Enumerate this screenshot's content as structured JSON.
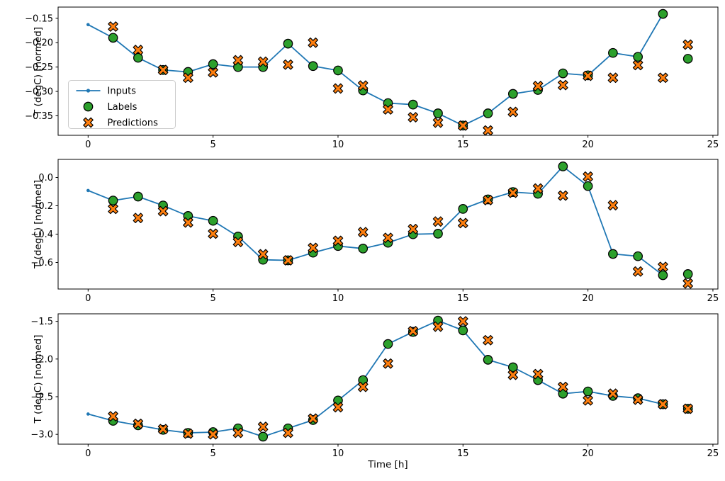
{
  "figure": {
    "xlabel": "Time [h]",
    "ylabel": "T (degC) [normed]",
    "background": "#ffffff",
    "colors": {
      "inputs": "#1f77b4",
      "labels": "#2ca02c",
      "predictions": "#ff7f0e",
      "marker_edge": "#000000",
      "spine": "#000000",
      "legend_border": "#cccccc",
      "legend_fill": "#ffffff"
    },
    "legend": {
      "position": "center-left-of-top-panel",
      "entries": [
        {
          "label": "Inputs",
          "style": "line-with-dots"
        },
        {
          "label": "Labels",
          "style": "scatter-circle"
        },
        {
          "label": "Predictions",
          "style": "scatter-x"
        }
      ]
    }
  },
  "chart_data": [
    {
      "type": "line",
      "panel": "top",
      "title": "",
      "xlabel": "",
      "ylabel": "T (degC) [normed]",
      "grid": false,
      "show_legend": true,
      "xlim": [
        -1.2,
        25.2
      ],
      "ylim": [
        -0.39,
        -0.127
      ],
      "xtick_values": [
        0,
        5,
        10,
        15,
        20,
        25
      ],
      "xtick_labels": [
        "0",
        "5",
        "10",
        "15",
        "20",
        "25"
      ],
      "ytick_values": [
        -0.15,
        -0.2,
        -0.25,
        -0.3,
        -0.35
      ],
      "ytick_labels": [
        "−0.15",
        "−0.20",
        "−0.25",
        "−0.30",
        "−0.35"
      ],
      "series": [
        {
          "name": "Inputs",
          "style": "line-with-dots",
          "x": [
            0,
            1,
            2,
            3,
            4,
            5,
            6,
            7,
            8,
            9,
            10,
            11,
            12,
            13,
            14,
            15,
            16,
            17,
            18,
            19,
            20,
            21,
            22,
            23
          ],
          "y": [
            -0.163,
            -0.19,
            -0.231,
            -0.256,
            -0.26,
            -0.244,
            -0.25,
            -0.25,
            -0.202,
            -0.248,
            -0.257,
            -0.298,
            -0.324,
            -0.327,
            -0.345,
            -0.37,
            -0.345,
            -0.305,
            -0.297,
            -0.263,
            -0.267,
            -0.221,
            -0.229,
            -0.141
          ]
        },
        {
          "name": "Labels",
          "style": "scatter-circle",
          "x": [
            1,
            2,
            3,
            4,
            5,
            6,
            7,
            8,
            9,
            10,
            11,
            12,
            13,
            14,
            15,
            16,
            17,
            18,
            19,
            20,
            21,
            22,
            23,
            24
          ],
          "y": [
            -0.19,
            -0.231,
            -0.256,
            -0.26,
            -0.244,
            -0.25,
            -0.25,
            -0.202,
            -0.248,
            -0.257,
            -0.298,
            -0.324,
            -0.327,
            -0.345,
            -0.37,
            -0.345,
            -0.305,
            -0.297,
            -0.263,
            -0.267,
            -0.221,
            -0.229,
            -0.141,
            -0.233
          ]
        },
        {
          "name": "Predictions",
          "style": "scatter-x",
          "x": [
            1,
            2,
            3,
            4,
            5,
            6,
            7,
            8,
            9,
            10,
            11,
            12,
            13,
            14,
            15,
            16,
            17,
            18,
            19,
            20,
            21,
            22,
            23,
            24
          ],
          "y": [
            -0.167,
            -0.215,
            -0.256,
            -0.272,
            -0.261,
            -0.236,
            -0.239,
            -0.245,
            -0.2,
            -0.294,
            -0.288,
            -0.337,
            -0.353,
            -0.364,
            -0.37,
            -0.38,
            -0.342,
            -0.289,
            -0.287,
            -0.268,
            -0.272,
            -0.246,
            -0.272,
            -0.204
          ]
        }
      ]
    },
    {
      "type": "line",
      "panel": "middle",
      "title": "",
      "xlabel": "",
      "ylabel": "T (degC) [normed]",
      "grid": false,
      "show_legend": false,
      "xlim": [
        -1.2,
        25.2
      ],
      "ylim": [
        -0.7875,
        0.1275
      ],
      "xtick_values": [
        0,
        5,
        10,
        15,
        20,
        25
      ],
      "xtick_labels": [
        "0",
        "5",
        "10",
        "15",
        "20",
        "25"
      ],
      "ytick_values": [
        0.0,
        -0.2,
        -0.4,
        -0.6
      ],
      "ytick_labels": [
        "0.0",
        "−0.2",
        "−0.4",
        "−0.6"
      ],
      "series": [
        {
          "name": "Inputs",
          "style": "line-with-dots",
          "x": [
            0,
            1,
            2,
            3,
            4,
            5,
            6,
            7,
            8,
            9,
            10,
            11,
            12,
            13,
            14,
            15,
            16,
            17,
            18,
            19,
            20,
            21,
            22,
            23
          ],
          "y": [
            -0.092,
            -0.163,
            -0.135,
            -0.198,
            -0.272,
            -0.306,
            -0.417,
            -0.581,
            -0.585,
            -0.531,
            -0.484,
            -0.502,
            -0.461,
            -0.401,
            -0.397,
            -0.222,
            -0.155,
            -0.103,
            -0.115,
            0.078,
            -0.061,
            -0.54,
            -0.556,
            -0.69
          ]
        },
        {
          "name": "Labels",
          "style": "scatter-circle",
          "x": [
            1,
            2,
            3,
            4,
            5,
            6,
            7,
            8,
            9,
            10,
            11,
            12,
            13,
            14,
            15,
            16,
            17,
            18,
            19,
            20,
            21,
            22,
            23,
            24
          ],
          "y": [
            -0.163,
            -0.135,
            -0.198,
            -0.272,
            -0.306,
            -0.417,
            -0.581,
            -0.585,
            -0.531,
            -0.484,
            -0.502,
            -0.461,
            -0.401,
            -0.397,
            -0.222,
            -0.155,
            -0.103,
            -0.115,
            0.078,
            -0.061,
            -0.54,
            -0.556,
            -0.69,
            -0.682
          ]
        },
        {
          "name": "Predictions",
          "style": "scatter-x",
          "x": [
            1,
            2,
            3,
            4,
            5,
            6,
            7,
            8,
            9,
            10,
            11,
            12,
            13,
            14,
            15,
            16,
            17,
            18,
            19,
            20,
            21,
            22,
            23,
            24
          ],
          "y": [
            -0.222,
            -0.286,
            -0.238,
            -0.318,
            -0.397,
            -0.455,
            -0.542,
            -0.585,
            -0.497,
            -0.447,
            -0.386,
            -0.426,
            -0.364,
            -0.311,
            -0.322,
            -0.16,
            -0.108,
            -0.078,
            -0.128,
            0.006,
            -0.196,
            -0.664,
            -0.631,
            -0.748
          ]
        }
      ]
    },
    {
      "type": "line",
      "panel": "bottom",
      "title": "",
      "xlabel": "Time [h]",
      "ylabel": "T (degC) [normed]",
      "grid": false,
      "show_legend": false,
      "xlim": [
        -1.2,
        25.2
      ],
      "ylim": [
        -3.13,
        -1.4
      ],
      "xtick_values": [
        0,
        5,
        10,
        15,
        20,
        25
      ],
      "xtick_labels": [
        "0",
        "5",
        "10",
        "15",
        "20",
        "25"
      ],
      "ytick_values": [
        -1.5,
        -2.0,
        -2.5,
        -3.0
      ],
      "ytick_labels": [
        "−1.5",
        "−2.0",
        "−2.5",
        "−3.0"
      ],
      "series": [
        {
          "name": "Inputs",
          "style": "line-with-dots",
          "x": [
            0,
            1,
            2,
            3,
            4,
            5,
            6,
            7,
            8,
            9,
            10,
            11,
            12,
            13,
            14,
            15,
            16,
            17,
            18,
            19,
            20,
            21,
            22,
            23
          ],
          "y": [
            -2.73,
            -2.82,
            -2.88,
            -2.94,
            -2.98,
            -2.97,
            -2.92,
            -3.03,
            -2.92,
            -2.81,
            -2.55,
            -2.28,
            -1.8,
            -1.64,
            -1.49,
            -1.62,
            -2.01,
            -2.11,
            -2.28,
            -2.46,
            -2.43,
            -2.49,
            -2.52,
            -2.6
          ]
        },
        {
          "name": "Labels",
          "style": "scatter-circle",
          "x": [
            1,
            2,
            3,
            4,
            5,
            6,
            7,
            8,
            9,
            10,
            11,
            12,
            13,
            14,
            15,
            16,
            17,
            18,
            19,
            20,
            21,
            22,
            23,
            24
          ],
          "y": [
            -2.82,
            -2.88,
            -2.94,
            -2.98,
            -2.97,
            -2.92,
            -3.03,
            -2.92,
            -2.81,
            -2.55,
            -2.28,
            -1.8,
            -1.64,
            -1.49,
            -1.62,
            -2.01,
            -2.11,
            -2.28,
            -2.46,
            -2.43,
            -2.49,
            -2.52,
            -2.6,
            -2.66
          ]
        },
        {
          "name": "Predictions",
          "style": "scatter-x",
          "x": [
            1,
            2,
            3,
            4,
            5,
            6,
            7,
            8,
            9,
            10,
            11,
            12,
            13,
            14,
            15,
            16,
            17,
            18,
            19,
            20,
            21,
            22,
            23,
            24
          ],
          "y": [
            -2.76,
            -2.86,
            -2.93,
            -2.99,
            -3.0,
            -2.98,
            -2.9,
            -2.98,
            -2.79,
            -2.64,
            -2.37,
            -2.06,
            -1.63,
            -1.57,
            -1.5,
            -1.75,
            -2.21,
            -2.2,
            -2.37,
            -2.55,
            -2.46,
            -2.54,
            -2.6,
            -2.66
          ]
        }
      ]
    }
  ]
}
